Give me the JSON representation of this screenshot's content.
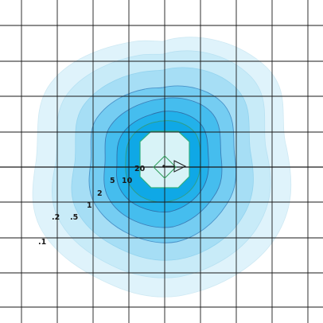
{
  "colors": {
    "grid": "#1a1a1a",
    "band_0_1": "#dff3fb",
    "band_0_2": "#c8ebf8",
    "band_0_5": "#a6def5",
    "band_1": "#75cdf2",
    "band_2": "#45bdee",
    "band_5": "#22b1ea",
    "band_10": "#0fa8e6",
    "band_20_edge": "#2eaf83",
    "center": "#d8f3f7",
    "marker": "#2e9e58",
    "arrow": "#1a1a1a"
  },
  "contour_labels": [
    {
      "id": "p1",
      "text": ".1"
    },
    {
      "id": "p2",
      "text": ".2"
    },
    {
      "id": "p5",
      "text": ".5"
    },
    {
      "id": "l1",
      "text": "1"
    },
    {
      "id": "l2",
      "text": "2"
    },
    {
      "id": "l5",
      "text": "5"
    },
    {
      "id": "l10",
      "text": "10"
    },
    {
      "id": "l20",
      "text": "20"
    }
  ],
  "icons": {
    "source_marker": "diamond-icon",
    "direction": "arrow-right-icon"
  }
}
